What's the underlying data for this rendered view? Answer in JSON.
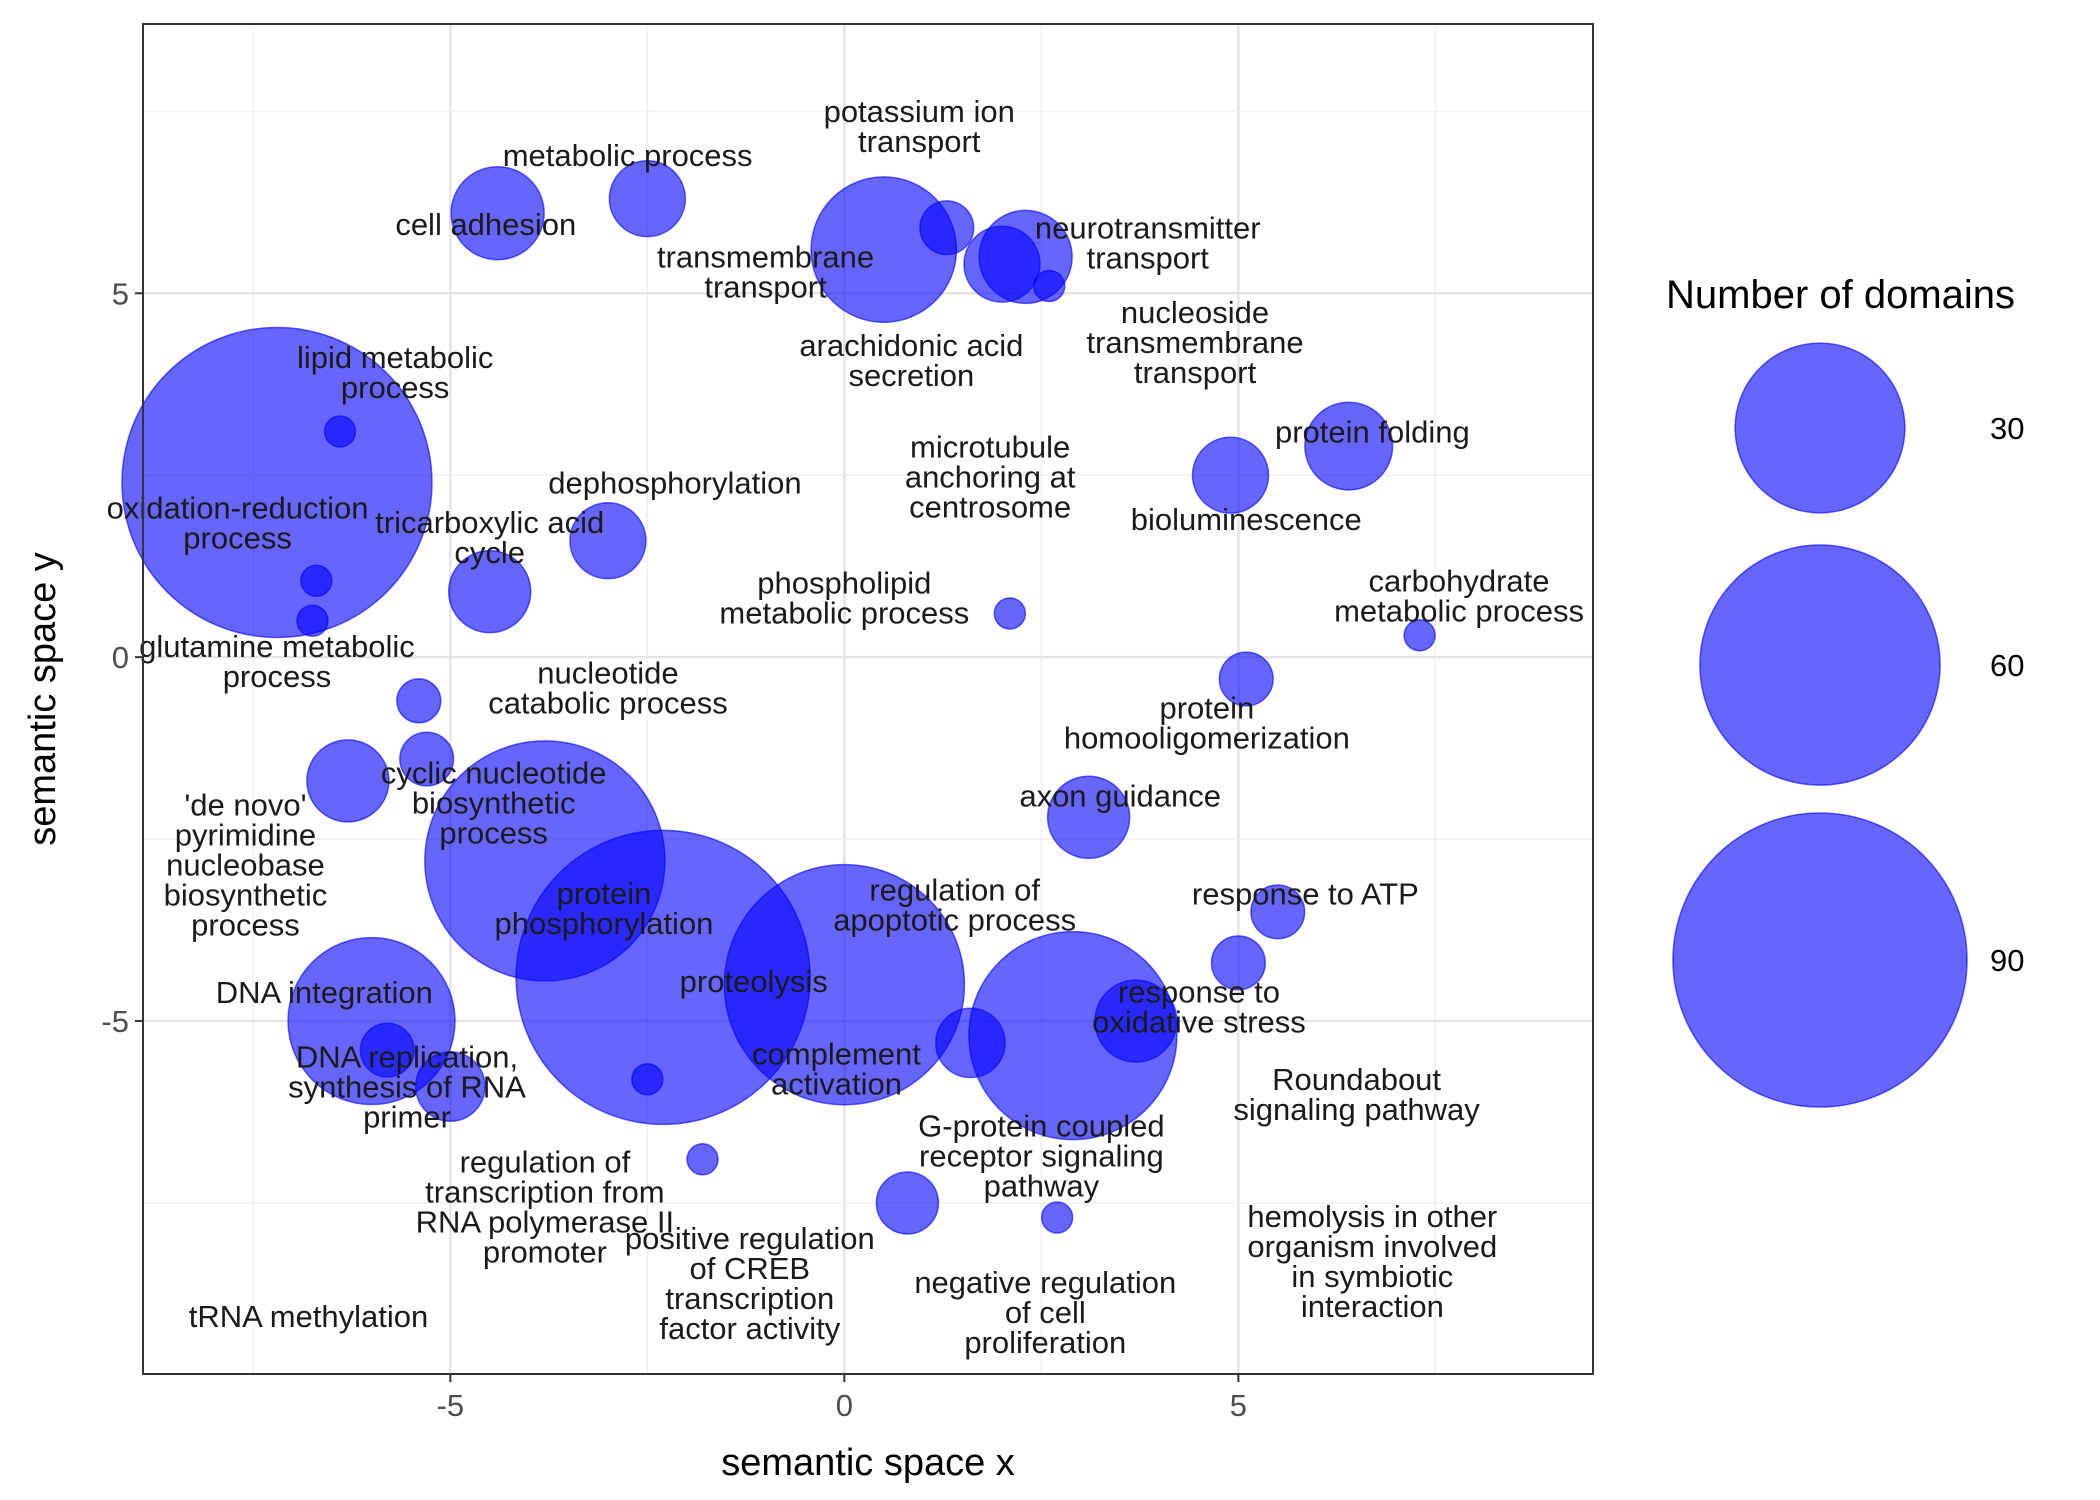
{
  "chart_data": {
    "type": "scatter",
    "subtype": "bubble",
    "xlabel": "semantic space x",
    "ylabel": "semantic space y",
    "xlim": [
      -8.9,
      9.5
    ],
    "ylim": [
      -9.85,
      8.7
    ],
    "x_ticks": [
      {
        "value": -5,
        "label": "-5"
      },
      {
        "value": 0,
        "label": "0"
      },
      {
        "value": 5,
        "label": "5"
      }
    ],
    "y_ticks": [
      {
        "value": 5,
        "label": "5"
      },
      {
        "value": 0,
        "label": "0"
      },
      {
        "value": -5,
        "label": "-5"
      }
    ],
    "grid": true,
    "bubble_color": "#0000ff",
    "bubble_opacity": 0.6,
    "legend": {
      "title": "Number of domains",
      "position": "right",
      "entries": [
        {
          "value": 30,
          "label": "30"
        },
        {
          "value": 60,
          "label": "60"
        },
        {
          "value": 90,
          "label": "90"
        }
      ]
    },
    "points": [
      {
        "x": -4.4,
        "y": 6.1,
        "size": 9
      },
      {
        "x": -2.5,
        "y": 6.3,
        "size": 6
      },
      {
        "x": 0.5,
        "y": 5.6,
        "size": 22
      },
      {
        "x": 1.3,
        "y": 5.9,
        "size": 3
      },
      {
        "x": 2.3,
        "y": 5.5,
        "size": 9
      },
      {
        "x": 2.0,
        "y": 5.4,
        "size": 6
      },
      {
        "x": 2.6,
        "y": 5.1,
        "size": 1
      },
      {
        "x": -7.2,
        "y": 2.4,
        "size": 100
      },
      {
        "x": -6.4,
        "y": 3.1,
        "size": 1
      },
      {
        "x": -3.0,
        "y": 1.6,
        "size": 6
      },
      {
        "x": -4.5,
        "y": 0.9,
        "size": 7
      },
      {
        "x": -6.7,
        "y": 1.05,
        "size": 1
      },
      {
        "x": -6.75,
        "y": 0.5,
        "size": 1
      },
      {
        "x": 2.1,
        "y": 0.6,
        "size": 1
      },
      {
        "x": 4.9,
        "y": 2.5,
        "size": 6
      },
      {
        "x": 6.4,
        "y": 2.9,
        "size": 8
      },
      {
        "x": 5.1,
        "y": -0.3,
        "size": 3
      },
      {
        "x": 7.3,
        "y": 0.3,
        "size": 1
      },
      {
        "x": -5.4,
        "y": -0.6,
        "size": 2
      },
      {
        "x": -5.3,
        "y": -1.4,
        "size": 3
      },
      {
        "x": -6.3,
        "y": -1.7,
        "size": 7
      },
      {
        "x": -3.8,
        "y": -2.8,
        "size": 60
      },
      {
        "x": -2.3,
        "y": -4.4,
        "size": 90
      },
      {
        "x": 0.0,
        "y": -4.5,
        "size": 60
      },
      {
        "x": 1.6,
        "y": -5.3,
        "size": 5
      },
      {
        "x": 2.9,
        "y": -5.2,
        "size": 45
      },
      {
        "x": 3.7,
        "y": -5.0,
        "size": 7
      },
      {
        "x": 3.1,
        "y": -2.2,
        "size": 7
      },
      {
        "x": 5.5,
        "y": -3.5,
        "size": 3
      },
      {
        "x": 5.0,
        "y": -4.2,
        "size": 3
      },
      {
        "x": -6.0,
        "y": -5.0,
        "size": 29
      },
      {
        "x": -5.8,
        "y": -5.4,
        "size": 3
      },
      {
        "x": -5.0,
        "y": -5.9,
        "size": 5
      },
      {
        "x": -2.5,
        "y": -5.8,
        "size": 1
      },
      {
        "x": -1.8,
        "y": -6.9,
        "size": 1
      },
      {
        "x": 0.8,
        "y": -7.5,
        "size": 4
      },
      {
        "x": 2.7,
        "y": -7.7,
        "size": 1
      }
    ],
    "labels": [
      {
        "x": -2.75,
        "y": 6.9,
        "lines": [
          "metabolic process"
        ]
      },
      {
        "x": -4.55,
        "y": 5.95,
        "lines": [
          "cell adhesion"
        ]
      },
      {
        "x": 0.95,
        "y": 7.3,
        "lines": [
          "potassium ion",
          "transport"
        ]
      },
      {
        "x": 3.85,
        "y": 5.7,
        "lines": [
          "neurotransmitter",
          "transport"
        ]
      },
      {
        "x": -1.0,
        "y": 5.3,
        "lines": [
          "transmembrane",
          "transport"
        ]
      },
      {
        "x": 0.85,
        "y": 4.08,
        "lines": [
          "arachidonic acid",
          "secretion"
        ]
      },
      {
        "x": 4.45,
        "y": 4.33,
        "lines": [
          "nucleoside",
          "transmembrane",
          "transport"
        ]
      },
      {
        "x": -5.7,
        "y": 3.92,
        "lines": [
          "lipid metabolic",
          "process"
        ]
      },
      {
        "x": 6.7,
        "y": 3.1,
        "lines": [
          "protein folding"
        ]
      },
      {
        "x": -2.15,
        "y": 2.4,
        "lines": [
          "dephosphorylation"
        ]
      },
      {
        "x": 1.85,
        "y": 2.48,
        "lines": [
          "microtubule",
          "anchoring at",
          "centrosome"
        ]
      },
      {
        "x": 5.1,
        "y": 1.9,
        "lines": [
          "bioluminescence"
        ]
      },
      {
        "x": -7.7,
        "y": 1.85,
        "lines": [
          "oxidation-reduction",
          "process"
        ]
      },
      {
        "x": -4.5,
        "y": 1.65,
        "lines": [
          "tricarboxylic acid",
          "cycle"
        ]
      },
      {
        "x": 0.0,
        "y": 0.82,
        "lines": [
          "phospholipid",
          "metabolic process"
        ]
      },
      {
        "x": 7.8,
        "y": 0.85,
        "lines": [
          "carbohydrate",
          "metabolic process"
        ]
      },
      {
        "x": -7.2,
        "y": -0.05,
        "lines": [
          "glutamine metabolic",
          "process"
        ]
      },
      {
        "x": -3.0,
        "y": -0.42,
        "lines": [
          "nucleotide",
          "catabolic process"
        ]
      },
      {
        "x": 4.6,
        "y": -0.9,
        "lines": [
          "protein",
          "homooligomerization"
        ]
      },
      {
        "x": -4.45,
        "y": -2.0,
        "lines": [
          "cyclic nucleotide",
          "biosynthetic",
          "process"
        ]
      },
      {
        "x": 3.5,
        "y": -1.9,
        "lines": [
          "axon guidance"
        ]
      },
      {
        "x": -7.6,
        "y": -2.85,
        "lines": [
          "'de novo'",
          "pyrimidine",
          "nucleobase",
          "biosynthetic",
          "process"
        ]
      },
      {
        "x": -3.05,
        "y": -3.45,
        "lines": [
          "protein",
          "phosphorylation"
        ]
      },
      {
        "x": 1.4,
        "y": -3.4,
        "lines": [
          "regulation of",
          "apoptotic process"
        ]
      },
      {
        "x": 5.85,
        "y": -3.25,
        "lines": [
          "response to ATP"
        ]
      },
      {
        "x": -1.15,
        "y": -4.45,
        "lines": [
          "proteolysis"
        ]
      },
      {
        "x": -6.6,
        "y": -4.6,
        "lines": [
          "DNA integration"
        ]
      },
      {
        "x": 4.5,
        "y": -4.8,
        "lines": [
          "response to",
          "oxidative stress"
        ]
      },
      {
        "x": -0.1,
        "y": -5.65,
        "lines": [
          "complement",
          "activation"
        ]
      },
      {
        "x": -5.55,
        "y": -5.9,
        "lines": [
          "DNA replication,",
          "synthesis of RNA",
          "primer"
        ]
      },
      {
        "x": 6.5,
        "y": -6.0,
        "lines": [
          "Roundabout",
          "signaling pathway"
        ]
      },
      {
        "x": 2.5,
        "y": -6.85,
        "lines": [
          "G-protein coupled",
          "receptor signaling",
          "pathway"
        ]
      },
      {
        "x": -3.8,
        "y": -7.55,
        "lines": [
          "regulation of",
          "transcription from",
          "RNA polymerase II",
          "promoter"
        ]
      },
      {
        "x": 6.7,
        "y": -8.3,
        "lines": [
          "hemolysis in other",
          "organism involved",
          "in symbiotic",
          "interaction"
        ]
      },
      {
        "x": -1.2,
        "y": -8.6,
        "lines": [
          "positive regulation",
          "of CREB",
          "transcription",
          "factor activity"
        ]
      },
      {
        "x": 2.55,
        "y": -9.0,
        "lines": [
          "negative regulation",
          "of cell",
          "proliferation"
        ]
      },
      {
        "x": -6.8,
        "y": -9.05,
        "lines": [
          "tRNA methylation"
        ]
      }
    ]
  }
}
